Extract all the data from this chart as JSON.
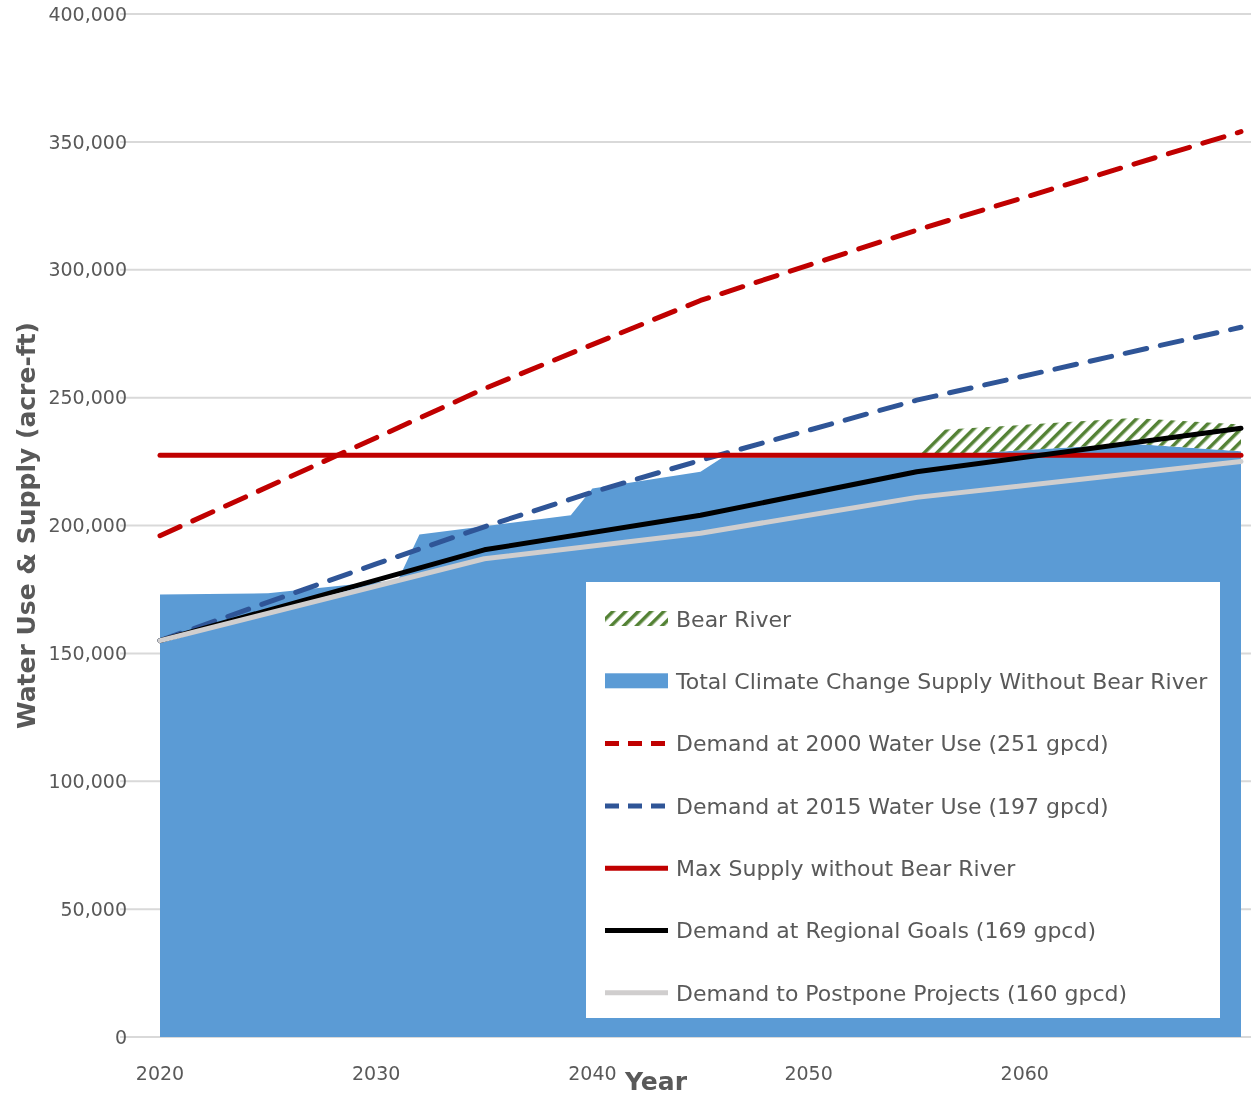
{
  "chart_data": {
    "type": "line",
    "xlabel": "Year",
    "ylabel": "Water Use & Supply (acre-ft)",
    "xlim": [
      2020,
      2070
    ],
    "xticks": [
      2020,
      2030,
      2040,
      2050,
      2060
    ],
    "ylim": [
      0,
      400000
    ],
    "yticks": [
      {
        "value": 0,
        "label": "0"
      },
      {
        "value": 50000,
        "label": "50,000"
      },
      {
        "value": 100000,
        "label": "100,000"
      },
      {
        "value": 150000,
        "label": "150,000"
      },
      {
        "value": 200000,
        "label": "200,000"
      },
      {
        "value": 250000,
        "label": "250,000"
      },
      {
        "value": 300000,
        "label": "300,000"
      },
      {
        "value": 350000,
        "label": "350,000"
      },
      {
        "value": 400000,
        "label": "400,000"
      }
    ],
    "grid": "y",
    "legend": "bottom right",
    "stacked": true,
    "series": [
      {
        "name": "Total Climate Change Supply Without Bear River",
        "type": "area",
        "color": "#5b9bd5",
        "x": [
          2020,
          2025,
          2029,
          2031,
          2032,
          2039,
          2040,
          2045,
          2046,
          2055,
          2056,
          2065,
          2070
        ],
        "values": [
          173000,
          173500,
          177000,
          178500,
          196500,
          204000,
          214500,
          221000,
          226500,
          227000,
          227500,
          232000,
          229000
        ]
      },
      {
        "name": "Bear River",
        "type": "area",
        "color": "#548235",
        "x": [
          2020,
          2025,
          2029,
          2031,
          2032,
          2039,
          2040,
          2045,
          2046,
          2055,
          2056,
          2065,
          2070
        ],
        "values": [
          0,
          0,
          0,
          0,
          0,
          0,
          0,
          0,
          0,
          0,
          9800,
          10000,
          10500
        ]
      },
      {
        "name": "Demand at 2000 Water Use (251 gpcd)",
        "line_style": "dashed",
        "color": "#c00000",
        "x": [
          2020,
          2035,
          2045,
          2055,
          2070
        ],
        "values": [
          196000,
          253500,
          288000,
          315500,
          354000
        ]
      },
      {
        "name": "Demand at 2015 Water Use (197 gpcd)",
        "line_style": "dashed",
        "color": "#2f5597",
        "x": [
          2020,
          2030,
          2035,
          2040,
          2045,
          2055,
          2070
        ],
        "values": [
          155000,
          185000,
          199500,
          213000,
          225500,
          249000,
          277500
        ]
      },
      {
        "name": "Max Supply without Bear River",
        "line_style": "solid",
        "color": "#c00000",
        "x": [
          2020,
          2070
        ],
        "values": [
          227500,
          227500
        ]
      },
      {
        "name": "Demand at Regional Goals (169 gpcd)",
        "line_style": "solid",
        "color": "#000000",
        "x": [
          2020,
          2035,
          2045,
          2055,
          2070
        ],
        "values": [
          155000,
          190500,
          204000,
          221000,
          238000
        ]
      },
      {
        "name": "Demand to Postpone Projects (160 gpcd)",
        "line_style": "solid",
        "color": "#d0cece",
        "x": [
          2020,
          2035,
          2045,
          2055,
          2070
        ],
        "values": [
          155000,
          187000,
          197000,
          211000,
          225000
        ]
      }
    ]
  }
}
